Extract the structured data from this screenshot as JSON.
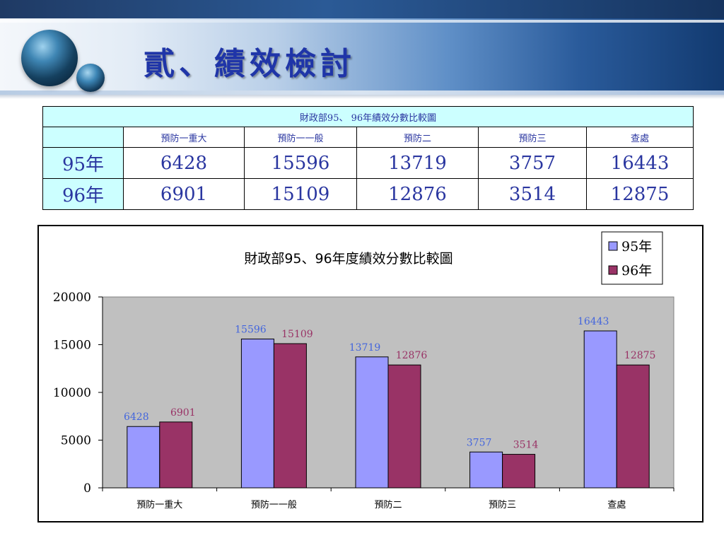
{
  "slide": {
    "title": "貳、績效檢討"
  },
  "table": {
    "caption": "財政部95、 96年績效分數比較圖",
    "columns": [
      "",
      "預防一重大",
      "預防一一般",
      "預防二",
      "預防三",
      "查處"
    ],
    "rows": [
      {
        "label": "95年",
        "values": [
          "6428",
          "15596",
          "13719",
          "3757",
          "16443"
        ]
      },
      {
        "label": "96年",
        "values": [
          "6901",
          "15109",
          "12876",
          "3514",
          "12875"
        ]
      }
    ]
  },
  "chart_data": {
    "type": "bar",
    "title": "財政部95、96年度績效分數比較圖",
    "xlabel": "",
    "ylabel": "",
    "categories": [
      "預防一重大",
      "預防一一般",
      "預防二",
      "預防三",
      "查處"
    ],
    "series": [
      {
        "name": "95年",
        "values": [
          6428,
          15596,
          13719,
          3757,
          16443
        ],
        "color": "#9999ff",
        "label_color": "#4466dd"
      },
      {
        "name": "96年",
        "values": [
          6901,
          15109,
          12876,
          3514,
          12875
        ],
        "color": "#993366",
        "label_color": "#993366"
      }
    ],
    "ylim": [
      0,
      20000
    ],
    "yticks": [
      0,
      5000,
      10000,
      15000,
      20000
    ],
    "grid": false,
    "plot_background": "#c0c0c0",
    "legend_position": "top-right"
  }
}
